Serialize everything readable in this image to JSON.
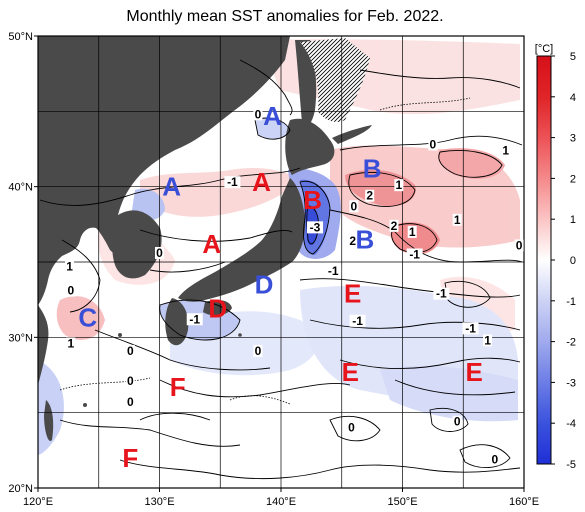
{
  "title": "Monthly mean SST anomalies for Feb. 2022.",
  "lat_labels": [
    {
      "text": "50°N",
      "lat": 50
    },
    {
      "text": "40°N",
      "lat": 40
    },
    {
      "text": "30°N",
      "lat": 30
    },
    {
      "text": "20°N",
      "lat": 20
    }
  ],
  "lon_labels": [
    {
      "text": "120°E",
      "lon": 120
    },
    {
      "text": "130°E",
      "lon": 130
    },
    {
      "text": "140°E",
      "lon": 140
    },
    {
      "text": "150°E",
      "lon": 150
    },
    {
      "text": "160°E",
      "lon": 160
    }
  ],
  "colorbar": {
    "unit": "[°C]",
    "ticks": [
      "5",
      "4",
      "3",
      "2",
      "1",
      "0",
      "-1",
      "-2",
      "-3",
      "-4",
      "-5"
    ],
    "min": -5,
    "max": 5
  },
  "regions": [
    {
      "label": "A",
      "color": "#3a4fd8",
      "lon": 139.3,
      "lat": 44.7
    },
    {
      "label": "A",
      "color": "#3a4fd8",
      "lon": 131.0,
      "lat": 40.0
    },
    {
      "label": "A",
      "color": "#e8141c",
      "lon": 138.4,
      "lat": 40.3
    },
    {
      "label": "A",
      "color": "#e8141c",
      "lon": 134.3,
      "lat": 36.2
    },
    {
      "label": "B",
      "color": "#3a4fd8",
      "lon": 147.5,
      "lat": 41.2
    },
    {
      "label": "B",
      "color": "#e8141c",
      "lon": 142.6,
      "lat": 39.1
    },
    {
      "label": "B",
      "color": "#3a4fd8",
      "lon": 146.9,
      "lat": 36.5
    },
    {
      "label": "C",
      "color": "#3a4fd8",
      "lon": 124.1,
      "lat": 31.3
    },
    {
      "label": "D",
      "color": "#3a4fd8",
      "lon": 138.6,
      "lat": 33.5
    },
    {
      "label": "D",
      "color": "#e8141c",
      "lon": 134.8,
      "lat": 31.9
    },
    {
      "label": "E",
      "color": "#e8141c",
      "lon": 145.9,
      "lat": 32.9
    },
    {
      "label": "E",
      "color": "#e8141c",
      "lon": 145.7,
      "lat": 27.7
    },
    {
      "label": "E",
      "color": "#e8141c",
      "lon": 155.9,
      "lat": 27.7
    },
    {
      "label": "F",
      "color": "#e8141c",
      "lon": 131.5,
      "lat": 26.7
    },
    {
      "label": "F",
      "color": "#e8141c",
      "lon": 127.6,
      "lat": 22.0
    }
  ],
  "contour_labels": [
    {
      "text": "0",
      "lon": 138.1,
      "lat": 44.6
    },
    {
      "text": "0",
      "lon": 152.5,
      "lat": 42.6
    },
    {
      "text": "1",
      "lon": 158.5,
      "lat": 42.2
    },
    {
      "text": "-1",
      "lon": 136.0,
      "lat": 40.1
    },
    {
      "text": "1",
      "lon": 149.7,
      "lat": 39.9
    },
    {
      "text": "2",
      "lon": 147.3,
      "lat": 39.2
    },
    {
      "text": "0",
      "lon": 146.0,
      "lat": 38.5
    },
    {
      "text": "1",
      "lon": 154.5,
      "lat": 37.6
    },
    {
      "text": "-3",
      "lon": 142.8,
      "lat": 37.1
    },
    {
      "text": "2",
      "lon": 149.3,
      "lat": 37.2
    },
    {
      "text": "1",
      "lon": 150.8,
      "lat": 36.8
    },
    {
      "text": "2",
      "lon": 145.9,
      "lat": 36.2
    },
    {
      "text": "0",
      "lon": 159.6,
      "lat": 35.9
    },
    {
      "text": "-1",
      "lon": 151.0,
      "lat": 35.3
    },
    {
      "text": "0",
      "lon": 130.0,
      "lat": 35.4
    },
    {
      "text": "1",
      "lon": 122.6,
      "lat": 34.5
    },
    {
      "text": "-1",
      "lon": 144.3,
      "lat": 34.2
    },
    {
      "text": "0",
      "lon": 122.7,
      "lat": 32.9
    },
    {
      "text": "-1",
      "lon": 153.2,
      "lat": 32.7
    },
    {
      "text": "-1",
      "lon": 132.9,
      "lat": 31.0
    },
    {
      "text": "-1",
      "lon": 146.3,
      "lat": 30.9
    },
    {
      "text": "-1",
      "lon": 155.6,
      "lat": 30.4
    },
    {
      "text": "1",
      "lon": 122.7,
      "lat": 29.4
    },
    {
      "text": "0",
      "lon": 127.6,
      "lat": 28.9
    },
    {
      "text": "0",
      "lon": 138.1,
      "lat": 28.9
    },
    {
      "text": "1",
      "lon": 157.0,
      "lat": 29.6
    },
    {
      "text": "0",
      "lon": 127.6,
      "lat": 26.9
    },
    {
      "text": "0",
      "lon": 127.6,
      "lat": 25.5
    },
    {
      "text": "0",
      "lon": 145.8,
      "lat": 23.8
    },
    {
      "text": "0",
      "lon": 154.5,
      "lat": 24.2
    },
    {
      "text": "0",
      "lon": 157.6,
      "lat": 21.7
    }
  ],
  "colors": {
    "land": "#4a4a4a",
    "ice_hatch": "#000000",
    "contour": "#000000",
    "grid": "#000000"
  }
}
